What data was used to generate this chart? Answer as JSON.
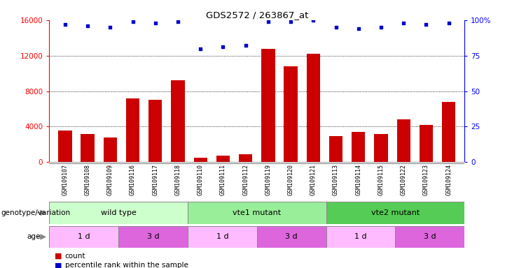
{
  "title": "GDS2572 / 263867_at",
  "samples": [
    "GSM109107",
    "GSM109108",
    "GSM109109",
    "GSM109116",
    "GSM109117",
    "GSM109118",
    "GSM109110",
    "GSM109111",
    "GSM109112",
    "GSM109119",
    "GSM109120",
    "GSM109121",
    "GSM109113",
    "GSM109114",
    "GSM109115",
    "GSM109122",
    "GSM109123",
    "GSM109124"
  ],
  "counts": [
    3600,
    3200,
    2800,
    7200,
    7000,
    9200,
    500,
    700,
    900,
    12800,
    10800,
    12200,
    2900,
    3400,
    3200,
    4800,
    4200,
    6800
  ],
  "percentile_ranks": [
    97,
    96,
    95,
    99,
    98,
    99,
    80,
    81,
    82,
    99,
    99,
    100,
    95,
    94,
    95,
    98,
    97,
    98
  ],
  "bar_color": "#cc0000",
  "dot_color": "#0000cc",
  "ylim_left": [
    0,
    16000
  ],
  "ylim_right": [
    0,
    100
  ],
  "yticks_left": [
    0,
    4000,
    8000,
    12000,
    16000
  ],
  "yticks_right": [
    0,
    25,
    50,
    75,
    100
  ],
  "ytick_labels_right": [
    "0",
    "25",
    "50",
    "75",
    "100%"
  ],
  "genotype_groups": [
    {
      "label": "wild type",
      "start": 0,
      "end": 6,
      "color": "#ccffcc"
    },
    {
      "label": "vte1 mutant",
      "start": 6,
      "end": 12,
      "color": "#88ee88"
    },
    {
      "label": "vte2 mutant",
      "start": 12,
      "end": 18,
      "color": "#44cc44"
    }
  ],
  "age_groups": [
    {
      "label": "1 d",
      "start": 0,
      "end": 3,
      "color": "#ffbbff"
    },
    {
      "label": "3 d",
      "start": 3,
      "end": 6,
      "color": "#dd66dd"
    },
    {
      "label": "1 d",
      "start": 6,
      "end": 9,
      "color": "#ffbbff"
    },
    {
      "label": "3 d",
      "start": 9,
      "end": 12,
      "color": "#dd66dd"
    },
    {
      "label": "1 d",
      "start": 12,
      "end": 15,
      "color": "#ffbbff"
    },
    {
      "label": "3 d",
      "start": 15,
      "end": 18,
      "color": "#dd66dd"
    }
  ],
  "legend_count_color": "#cc0000",
  "legend_dot_color": "#0000cc",
  "background_color": "#ffffff",
  "xtick_bg": "#d8d8d8",
  "geno_border_color": "#888888",
  "age_border_color": "#888888"
}
